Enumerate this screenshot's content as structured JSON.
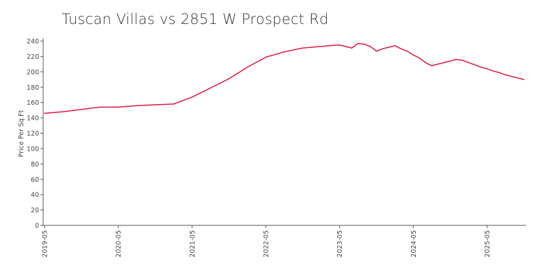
{
  "chart_data": {
    "type": "line",
    "title": "Tuscan Villas vs 2851 W Prospect Rd",
    "ylabel": "Price Per Sq Ft",
    "xlabel": "",
    "ylim": [
      0,
      240
    ],
    "y_ticks": [
      "0",
      "20",
      "40",
      "60",
      "80",
      "100",
      "120",
      "140",
      "160",
      "180",
      "200",
      "220",
      "240"
    ],
    "x_ticks": [
      "2019-05",
      "2020-05",
      "2021-05",
      "2022-05",
      "2023-05",
      "2024-05",
      "2025-05"
    ],
    "x_range": [
      "2019-05",
      "2025-11"
    ],
    "grid": false,
    "series": [
      {
        "color": "#dc143c",
        "x": [
          "2019-05",
          "2019-08",
          "2019-11",
          "2020-02",
          "2020-05",
          "2020-08",
          "2020-11",
          "2021-02",
          "2021-05",
          "2021-08",
          "2021-11",
          "2022-02",
          "2022-05",
          "2022-08",
          "2022-11",
          "2023-02",
          "2023-05",
          "2023-07",
          "2023-08",
          "2023-09",
          "2023-10",
          "2023-11",
          "2023-12",
          "2024-01",
          "2024-02",
          "2024-03",
          "2024-04",
          "2024-05",
          "2024-06",
          "2024-07",
          "2024-08",
          "2024-09",
          "2024-10",
          "2024-11",
          "2024-12",
          "2025-01",
          "2025-02",
          "2025-03",
          "2025-04",
          "2025-05",
          "2025-06",
          "2025-07",
          "2025-08",
          "2025-09",
          "2025-10",
          "2025-11"
        ],
        "values": [
          146,
          148,
          151,
          154,
          154,
          156,
          157,
          158,
          167,
          179,
          191,
          206,
          219,
          226,
          231,
          233,
          235,
          231,
          237,
          236,
          233,
          227,
          230,
          232,
          234,
          230,
          227,
          222,
          218,
          212,
          208,
          210,
          212,
          214,
          216,
          215,
          212,
          209,
          206,
          204,
          201,
          199,
          196,
          194,
          192,
          190
        ]
      }
    ]
  }
}
